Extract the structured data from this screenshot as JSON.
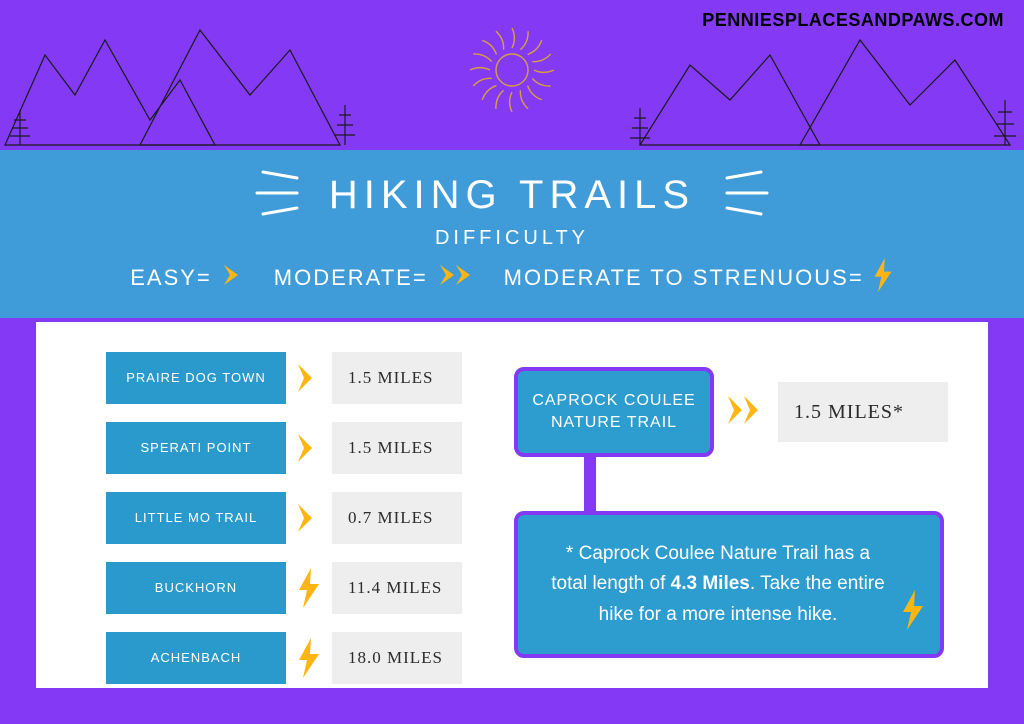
{
  "colors": {
    "page_bg": "#8439f5",
    "title_bar_bg": "#3f9cd8",
    "trail_name_bg": "#2a99cb",
    "dist_bg": "#eeeeee",
    "caprock_bg": "#2d9cce",
    "caprock_border": "#8439f5",
    "note_bg": "#2d9cce",
    "note_border": "#8439f5",
    "accent_yellow": "#ffb511",
    "white": "#ffffff",
    "sun_stroke": "#d8a03f",
    "mountain_stroke": "#1a1a1a"
  },
  "header": {
    "url": "PENNIESPLACESANDPAWS.COM"
  },
  "title": {
    "main": "HIKING TRAILS",
    "sub": "DIFFICULTY"
  },
  "legend": {
    "easy": "EASY=",
    "moderate": "MODERATE=",
    "strenuous": "MODERATE TO STRENUOUS="
  },
  "trails": [
    {
      "name": "PRAIRE DOG TOWN",
      "icon": "chev",
      "dist": "1.5 MILES"
    },
    {
      "name": "SPERATI POINT",
      "icon": "chev",
      "dist": "1.5 MILES"
    },
    {
      "name": "LITTLE MO TRAIL",
      "icon": "chev",
      "dist": "0.7 MILES"
    },
    {
      "name": "BUCKHORN",
      "icon": "bolt",
      "dist": "11.4 MILES"
    },
    {
      "name": "ACHENBACH",
      "icon": "bolt",
      "dist": "18.0 MILES"
    }
  ],
  "caprock": {
    "name": "CAPROCK COULEE NATURE TRAIL",
    "dist": "1.5 MILES*",
    "note_pre": "* Caprock Coulee Nature Trail has a total length of ",
    "note_bold": "4.3 Miles",
    "note_post": ". Take the entire hike for a more intense hike."
  }
}
